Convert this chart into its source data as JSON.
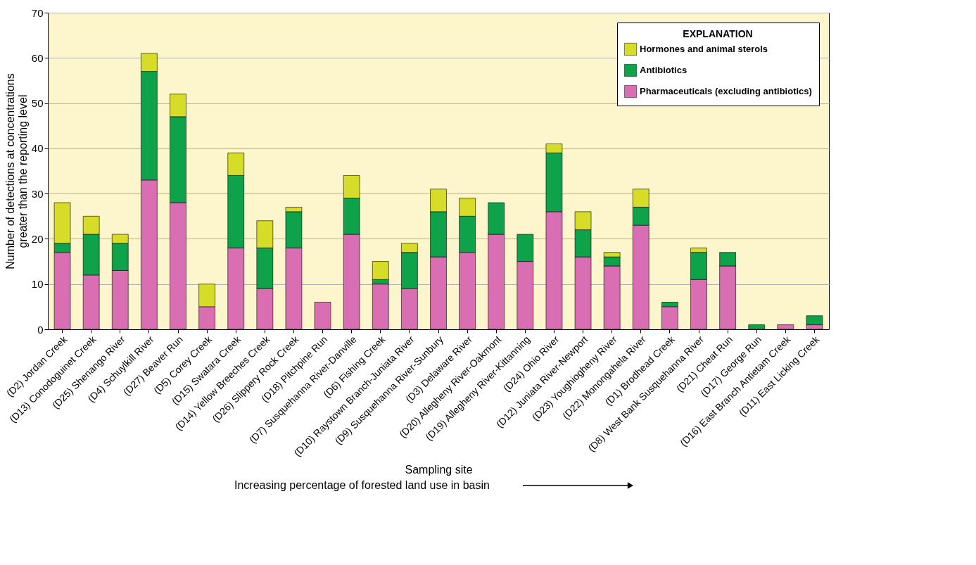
{
  "chart_data": {
    "type": "bar",
    "stacked": true,
    "xlabel": "Sampling site",
    "ylabel": "Number of detections at concentrations\ngreater than the reporting level",
    "legend_title": "EXPLANATION",
    "annotations": [
      "Increasing percentage of forested land use in basin"
    ],
    "categories": [
      "(D2) Jordan Creek",
      "(D13) Conodoguinet Creek",
      "(D25) Shenango River",
      "(D4) Schuylkill River",
      "(D27) Beaver Run",
      "(D5) Corey Creek",
      "(D15) Swatara Creek",
      "(D14) Yellow Breeches Creek",
      "(D26) Slippery Rock Creek",
      "(D18) Pitchpine Run",
      "(D7) Susquehanna River-Danville",
      "(D6) Fishing Creek",
      "(D10) Raystown Branch-Juniata River",
      "(D9) Susquehanna River-Sunbury",
      "(D3) Delaware River",
      "(D20) Allegheny River-Oakmont",
      "(D19) Allegheny River-Kittanning",
      "(D24) Ohio River",
      "(D12) Juniata River-Newport",
      "(D23) Youghiogheny River",
      "(D22) Monongahela River",
      "(D1) Brodhead Creek",
      "(D8) West Bank Susquehanna River",
      "(D21) Cheat Run",
      "(D17) George Run",
      "(D16) East Branch Antietam Creek",
      "(D11) East Licking Creek"
    ],
    "series": [
      {
        "name": "Pharmaceuticals (excluding antibiotics)",
        "color": "#d96fb2",
        "values": [
          17,
          12,
          13,
          33,
          28,
          5,
          18,
          9,
          18,
          6,
          21,
          10,
          9,
          16,
          17,
          21,
          15,
          26,
          16,
          14,
          23,
          5,
          11,
          14,
          0,
          1,
          1
        ]
      },
      {
        "name": "Antibiotics",
        "color": "#0ea24a",
        "values": [
          2,
          9,
          6,
          24,
          19,
          0,
          16,
          9,
          8,
          0,
          8,
          1,
          8,
          10,
          8,
          7,
          6,
          13,
          6,
          2,
          4,
          1,
          6,
          3,
          1,
          0,
          2
        ]
      },
      {
        "name": "Hormones and animal sterols",
        "color": "#d7dc28",
        "values": [
          9,
          4,
          2,
          4,
          5,
          5,
          5,
          6,
          1,
          0,
          5,
          4,
          2,
          5,
          4,
          0,
          0,
          2,
          4,
          1,
          4,
          0,
          1,
          0,
          0,
          0,
          0
        ]
      }
    ],
    "ylim": [
      0,
      70
    ],
    "yticks": [
      0,
      10,
      20,
      30,
      40,
      50,
      60,
      70
    ],
    "grid": "y",
    "legend": "top right"
  }
}
